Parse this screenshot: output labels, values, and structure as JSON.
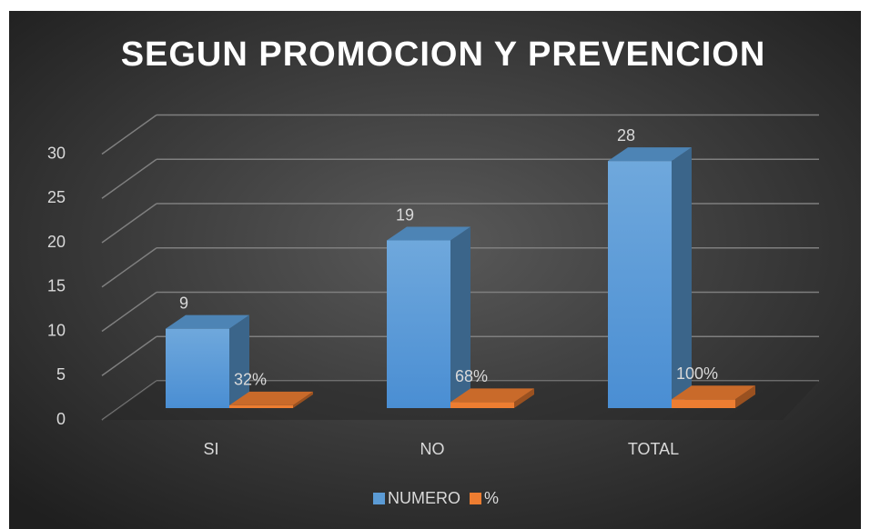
{
  "chart_data": {
    "type": "bar3d",
    "title": "SEGUN PROMOCION Y PREVENCION",
    "categories": [
      "SI",
      "NO",
      "TOTAL"
    ],
    "series": [
      {
        "name": "NUMERO",
        "color": "#5b9bd5",
        "values": [
          9,
          19,
          28
        ]
      },
      {
        "name": "%",
        "color": "#ed7d31",
        "values": [
          0.32,
          0.68,
          1
        ],
        "value_labels": [
          "32%",
          "68%",
          "100%"
        ]
      }
    ],
    "ylim": [
      0,
      30
    ],
    "yticks": [
      0,
      5,
      10,
      15,
      20,
      25,
      30
    ],
    "grid": true,
    "legend": "bottom"
  }
}
